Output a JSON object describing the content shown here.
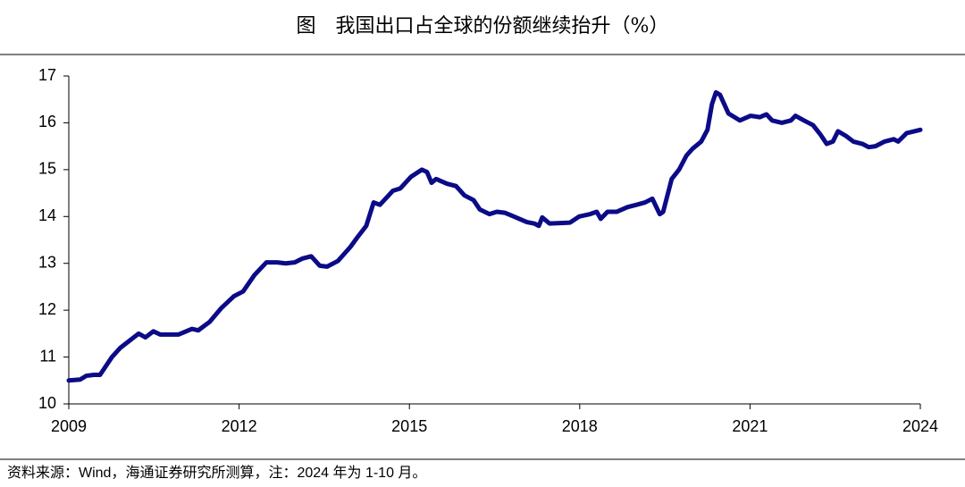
{
  "chart_data": {
    "type": "line",
    "title": "图　我国出口占全球的份额继续抬升（%）",
    "source": "资料来源：Wind，海通证券研究所测算，注：2024 年为 1-10 月。",
    "xlim": [
      2009,
      2024
    ],
    "xticks": [
      2009,
      2012,
      2015,
      2018,
      2021,
      2024
    ],
    "ylim": [
      10,
      17
    ],
    "yticks": [
      10,
      11,
      12,
      13,
      14,
      15,
      16,
      17
    ],
    "series": [
      {
        "color": "#0b0b88",
        "x": [
          2009.0,
          2009.2,
          2009.31,
          2009.44,
          2009.55,
          2009.76,
          2009.91,
          2010.07,
          2010.23,
          2010.35,
          2010.49,
          2010.61,
          2010.93,
          2011.17,
          2011.28,
          2011.48,
          2011.69,
          2011.91,
          2012.07,
          2012.27,
          2012.48,
          2012.67,
          2012.82,
          2012.98,
          2013.11,
          2013.27,
          2013.42,
          2013.55,
          2013.74,
          2013.96,
          2014.08,
          2014.24,
          2014.37,
          2014.48,
          2014.71,
          2014.84,
          2015.03,
          2015.22,
          2015.31,
          2015.39,
          2015.47,
          2015.66,
          2015.82,
          2015.97,
          2016.13,
          2016.24,
          2016.41,
          2016.54,
          2016.68,
          2016.84,
          2017.07,
          2017.2,
          2017.28,
          2017.34,
          2017.47,
          2017.83,
          2017.99,
          2018.18,
          2018.3,
          2018.37,
          2018.49,
          2018.65,
          2018.84,
          2019.0,
          2019.15,
          2019.28,
          2019.41,
          2019.47,
          2019.62,
          2019.75,
          2019.88,
          2019.99,
          2020.14,
          2020.25,
          2020.33,
          2020.4,
          2020.47,
          2020.62,
          2020.82,
          2021.01,
          2021.17,
          2021.29,
          2021.39,
          2021.56,
          2021.72,
          2021.8,
          2021.95,
          2022.11,
          2022.24,
          2022.35,
          2022.46,
          2022.55,
          2022.69,
          2022.82,
          2022.98,
          2023.09,
          2023.21,
          2023.37,
          2023.53,
          2023.61,
          2023.76,
          2024.0
        ],
        "values": [
          10.5,
          10.52,
          10.6,
          10.62,
          10.62,
          11.0,
          11.2,
          11.35,
          11.5,
          11.42,
          11.55,
          11.48,
          11.48,
          11.6,
          11.57,
          11.75,
          12.05,
          12.3,
          12.4,
          12.75,
          13.02,
          13.02,
          13.0,
          13.02,
          13.1,
          13.15,
          12.95,
          12.93,
          13.05,
          13.35,
          13.55,
          13.8,
          14.3,
          14.25,
          14.55,
          14.6,
          14.85,
          15.0,
          14.95,
          14.72,
          14.8,
          14.7,
          14.65,
          14.45,
          14.35,
          14.15,
          14.05,
          14.1,
          14.08,
          14.0,
          13.88,
          13.85,
          13.8,
          13.98,
          13.85,
          13.87,
          14.0,
          14.05,
          14.1,
          13.95,
          14.1,
          14.1,
          14.2,
          14.25,
          14.3,
          14.38,
          14.05,
          14.1,
          14.8,
          15.0,
          15.3,
          15.45,
          15.6,
          15.85,
          16.4,
          16.65,
          16.6,
          16.2,
          16.05,
          16.15,
          16.12,
          16.18,
          16.05,
          16.0,
          16.05,
          16.15,
          16.05,
          15.95,
          15.75,
          15.55,
          15.6,
          15.82,
          15.72,
          15.6,
          15.55,
          15.48,
          15.5,
          15.6,
          15.65,
          15.6,
          15.78,
          15.85
        ]
      }
    ]
  }
}
